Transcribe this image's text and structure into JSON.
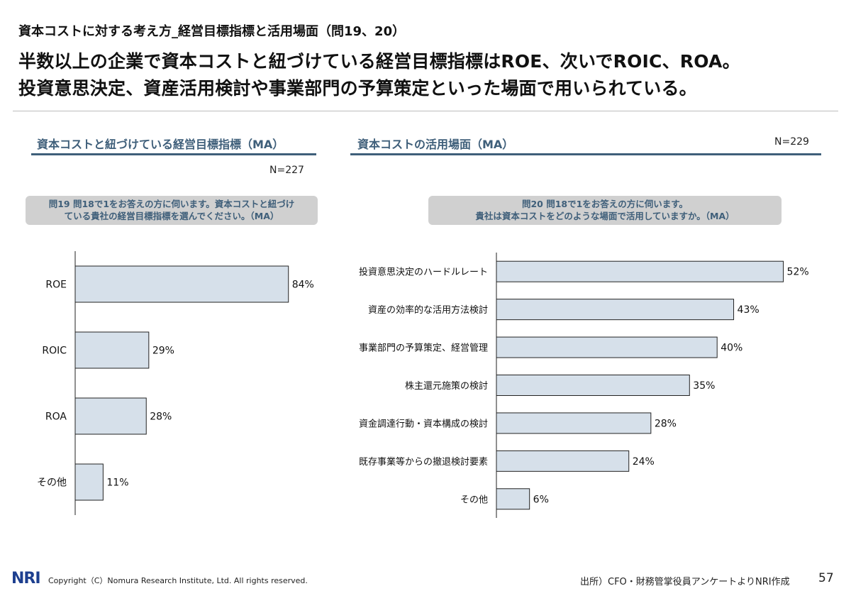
{
  "slide": {
    "subtitle": "資本コストに対する考え方_経営目標指標と活用場面（問19、20）",
    "headline_line1": "半数以上の企業で資本コストと紐づけている経営目標指標はROE、次いでROIC、ROA。",
    "headline_line2": "投資意思決定、資産活用検討や事業部門の予算策定といった場面で用いられている。"
  },
  "left_panel": {
    "title": "資本コストと紐づけている経営目標指標（MA）",
    "n": "N=227",
    "question_line1": "問19 問18で1をお答えの方に伺います。資本コストと紐づけ",
    "question_line2": "ている貴社の経営目標指標を選んでください。（MA）"
  },
  "right_panel": {
    "title": "資本コストの活用場面（MA）",
    "n": "N=229",
    "question_line1": "問20 問18で1をお答えの方に伺います。",
    "question_line2": "貴社は資本コストをどのような場面で活用していますか。（MA）"
  },
  "chart_data": [
    {
      "type": "bar",
      "orientation": "horizontal",
      "title": "資本コストと紐づけている経営目標指標（MA）",
      "categories": [
        "ROE",
        "ROIC",
        "ROA",
        "その他"
      ],
      "values": [
        84,
        29,
        28,
        11
      ],
      "labels": [
        "84%",
        "29%",
        "28%",
        "11%"
      ],
      "unit": "%",
      "xlim": [
        0,
        100
      ],
      "grid": false,
      "legend": "none",
      "bar_color": "#d6e0ea"
    },
    {
      "type": "bar",
      "orientation": "horizontal",
      "title": "資本コストの活用場面（MA）",
      "categories": [
        "投資意思決定のハードルレート",
        "資産の効率的な活用方法検討",
        "事業部門の予算策定、経営管理",
        "株主還元施策の検討",
        "資金調達行動・資本構成の検討",
        "既存事業等からの撤退検討要素",
        "その他"
      ],
      "values": [
        52,
        43,
        40,
        35,
        28,
        24,
        6
      ],
      "labels": [
        "52%",
        "43%",
        "40%",
        "35%",
        "28%",
        "24%",
        "6%"
      ],
      "unit": "%",
      "xlim": [
        0,
        100
      ],
      "grid": false,
      "legend": "none",
      "bar_color": "#d6e0ea"
    }
  ],
  "footer": {
    "logo": "NRI",
    "copyright": "Copyright（C）Nomura Research Institute, Ltd. All rights reserved.",
    "source": "出所）CFO・財務管掌役員アンケートよりNRI作成",
    "page": "57"
  }
}
